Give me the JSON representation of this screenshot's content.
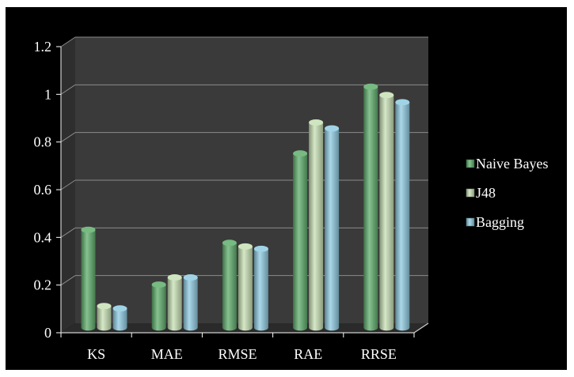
{
  "chart_data": {
    "type": "bar",
    "categories": [
      "KS",
      "MAE",
      "RMSE",
      "RAE",
      "RRSE"
    ],
    "series": [
      {
        "name": "Naive Bayes",
        "values": [
          0.41,
          0.18,
          0.355,
          0.73,
          1.01
        ],
        "color": "#5fae6c"
      },
      {
        "name": "J48",
        "values": [
          0.09,
          0.21,
          0.34,
          0.86,
          0.975
        ],
        "color": "#c7e0b4"
      },
      {
        "name": "Bagging",
        "values": [
          0.08,
          0.21,
          0.33,
          0.835,
          0.945
        ],
        "color": "#8fcbe2"
      }
    ],
    "yticks": [
      "0",
      "0.2",
      "0.4",
      "0.6",
      "0.8",
      "1",
      "1.2"
    ],
    "ylim": [
      0,
      1.2
    ],
    "grid": true,
    "legend_position": "right",
    "style": "3d-clustered-cylinder",
    "colors": {
      "background": "#000000",
      "wall": "#3a3a3a",
      "floor": "#2a2a2a",
      "grid": "#8a8a8a",
      "text": "#ffffff"
    }
  }
}
